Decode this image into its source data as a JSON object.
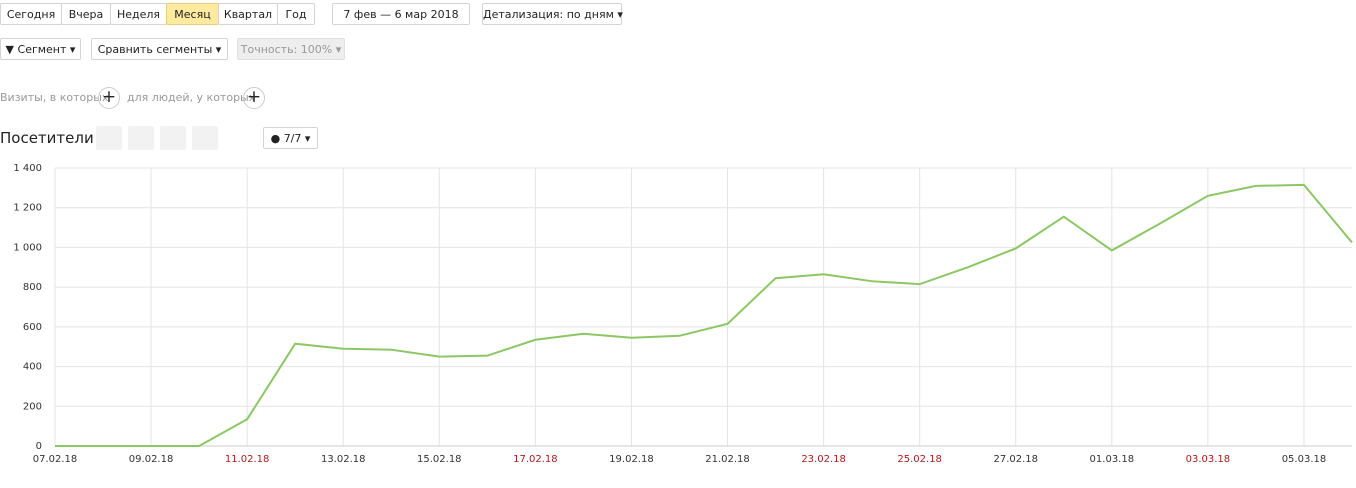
{
  "toolbar": {
    "periods": [
      "Сегодня",
      "Вчера",
      "Неделя",
      "Месяц",
      "Квартал",
      "Год"
    ],
    "date_range": "7 фев — 6 мар 2018",
    "detail": "Детализация: по дням",
    "segment": "Сегмент",
    "compare": "Сравнить сегменты",
    "accuracy": "Точность: 100%",
    "visits_filter": "Визиты, в которых",
    "people_filter": "для людей, у которых",
    "metric_title": "Посетители",
    "series_counter": "7/7"
  },
  "chart_data": {
    "type": "line",
    "categories": [
      "07.02.18",
      null,
      "09.02.18",
      null,
      "11.02.18",
      null,
      "13.02.18",
      null,
      "15.02.18",
      null,
      "17.02.18",
      null,
      "19.02.18",
      null,
      "21.02.18",
      null,
      "23.02.18",
      null,
      "25.02.18",
      null,
      "27.02.18",
      null,
      "01.03.18",
      null,
      "03.03.18",
      null,
      "05.03.18",
      null
    ],
    "category_colors": [
      "#333333",
      null,
      "#333333",
      null,
      "#a32020",
      null,
      "#333333",
      null,
      "#333333",
      null,
      "#a32020",
      null,
      "#333333",
      null,
      "#333333",
      null,
      "#a32020",
      null,
      "#a32020",
      null,
      "#333333",
      null,
      "#333333",
      null,
      "#a32020",
      null,
      "#333333",
      null
    ],
    "values": [
      0,
      0,
      0,
      0,
      135,
      515,
      490,
      485,
      450,
      455,
      535,
      565,
      545,
      555,
      615,
      845,
      865,
      830,
      815,
      900,
      995,
      1155,
      985,
      1120,
      1260,
      1310,
      1315,
      1025
    ],
    "color": "#8cc665",
    "ylim": [
      0,
      1400
    ],
    "yticks": [
      0,
      200,
      400,
      600,
      800,
      {
        "value": 1000,
        "label": "1 000"
      },
      {
        "value": 1200,
        "label": "1 200"
      },
      {
        "value": 1400,
        "label": "1 400"
      }
    ],
    "grid": true
  }
}
